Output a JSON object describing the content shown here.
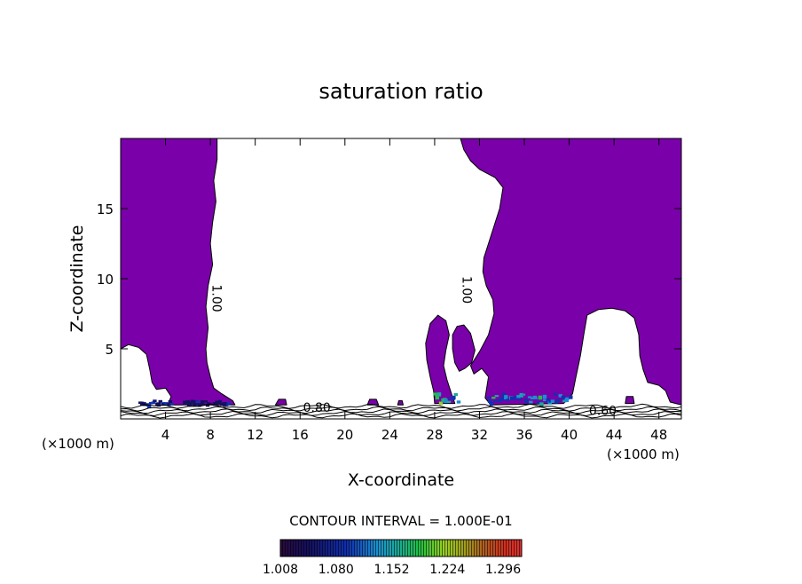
{
  "chart_data": {
    "type": "heatmap",
    "title": "saturation ratio",
    "xlabel": "X-coordinate",
    "ylabel": "Z-coordinate",
    "x_unit_label": "(×1000 m)",
    "z_unit_label": "(×1000 m)",
    "xlim": [
      0,
      50
    ],
    "ylim": [
      0,
      20
    ],
    "x_ticks": [
      4,
      8,
      12,
      16,
      20,
      24,
      28,
      32,
      36,
      40,
      44,
      48
    ],
    "y_ticks": [
      5,
      10,
      15
    ],
    "contour_labels": [
      {
        "text": "1.00",
        "x": 8.2,
        "z": 8.6
      },
      {
        "text": "1.00",
        "x": 30.5,
        "z": 9.2
      },
      {
        "text": "0.80",
        "x": 17.5,
        "z": 0.5
      },
      {
        "text": "0.60",
        "x": 43.0,
        "z": 0.3
      }
    ],
    "contour_interval_text": "CONTOUR INTERVAL = 1.000E-01",
    "colorbar": {
      "ticks": [
        "1.008",
        "1.080",
        "1.152",
        "1.224",
        "1.296"
      ],
      "min": 1.008,
      "max": 1.32
    },
    "colors": {
      "supersaturated_fill": "#7a00aa",
      "contour_line": "#000000"
    },
    "regions": [
      {
        "name": "left-column",
        "outline": [
          [
            0,
            20
          ],
          [
            8.6,
            20
          ],
          [
            8.6,
            18.5
          ],
          [
            8.3,
            17
          ],
          [
            8.5,
            15.5
          ],
          [
            8.2,
            14
          ],
          [
            8.0,
            12.5
          ],
          [
            8.2,
            11
          ],
          [
            7.8,
            9.5
          ],
          [
            7.6,
            8
          ],
          [
            7.8,
            6.5
          ],
          [
            7.6,
            5
          ],
          [
            7.7,
            4
          ],
          [
            8.0,
            3
          ],
          [
            8.3,
            2.2
          ],
          [
            9.0,
            1.8
          ],
          [
            10.0,
            1.3
          ],
          [
            10.2,
            1.0
          ],
          [
            4.2,
            1.0
          ],
          [
            4.5,
            1.6
          ],
          [
            4.0,
            2.2
          ],
          [
            3.2,
            2.1
          ],
          [
            2.8,
            2.6
          ],
          [
            2.6,
            3.5
          ],
          [
            2.3,
            4.6
          ],
          [
            1.6,
            5.1
          ],
          [
            0.7,
            5.3
          ],
          [
            0,
            5.0
          ]
        ]
      },
      {
        "name": "right-column",
        "outline": [
          [
            30.3,
            20
          ],
          [
            50,
            20
          ],
          [
            50,
            1.0
          ],
          [
            49.0,
            1.2
          ],
          [
            48.6,
            2.0
          ],
          [
            48.0,
            2.4
          ],
          [
            47.0,
            2.6
          ],
          [
            46.6,
            3.5
          ],
          [
            46.3,
            4.5
          ],
          [
            46.2,
            6.0
          ],
          [
            45.8,
            7.2
          ],
          [
            45.0,
            7.7
          ],
          [
            43.8,
            7.9
          ],
          [
            42.6,
            7.8
          ],
          [
            41.6,
            7.4
          ],
          [
            41.3,
            6.0
          ],
          [
            41.0,
            4.5
          ],
          [
            40.6,
            3.0
          ],
          [
            40.3,
            1.8
          ],
          [
            39.5,
            1.1
          ],
          [
            33.0,
            1.0
          ],
          [
            32.5,
            1.5
          ],
          [
            32.8,
            3.0
          ],
          [
            32.2,
            3.6
          ],
          [
            31.5,
            3.2
          ],
          [
            31.2,
            3.8
          ],
          [
            32.0,
            4.8
          ],
          [
            32.8,
            6.0
          ],
          [
            33.3,
            7.5
          ],
          [
            33.2,
            8.5
          ],
          [
            32.6,
            9.5
          ],
          [
            32.3,
            10.5
          ],
          [
            32.4,
            11.5
          ],
          [
            33.0,
            13.0
          ],
          [
            33.8,
            15.0
          ],
          [
            34.1,
            16.5
          ],
          [
            33.4,
            17.2
          ],
          [
            32.0,
            17.8
          ],
          [
            31.2,
            18.4
          ],
          [
            30.6,
            19.2
          ]
        ]
      },
      {
        "name": "arch-left-lobe",
        "outline": [
          [
            27.2,
            5.4
          ],
          [
            27.6,
            6.8
          ],
          [
            28.3,
            7.4
          ],
          [
            29.0,
            7.0
          ],
          [
            29.3,
            6.0
          ],
          [
            29.0,
            4.9
          ],
          [
            28.8,
            3.8
          ],
          [
            29.1,
            2.8
          ],
          [
            29.5,
            1.8
          ],
          [
            29.8,
            1.1
          ],
          [
            28.0,
            1.1
          ],
          [
            27.9,
            2.0
          ],
          [
            27.6,
            3.0
          ],
          [
            27.3,
            4.2
          ]
        ]
      },
      {
        "name": "arch-right-lobe",
        "outline": [
          [
            29.6,
            6.0
          ],
          [
            30.0,
            6.6
          ],
          [
            30.6,
            6.7
          ],
          [
            31.2,
            6.1
          ],
          [
            31.6,
            4.9
          ],
          [
            31.3,
            4.0
          ],
          [
            30.7,
            3.6
          ],
          [
            30.2,
            3.4
          ],
          [
            29.8,
            4.0
          ],
          [
            29.6,
            5.0
          ]
        ]
      },
      {
        "name": "patch-1",
        "outline": [
          [
            13.8,
            1.0
          ],
          [
            14.8,
            1.0
          ],
          [
            14.7,
            1.4
          ],
          [
            14.1,
            1.4
          ]
        ]
      },
      {
        "name": "patch-2",
        "outline": [
          [
            22.0,
            1.0
          ],
          [
            23.0,
            1.0
          ],
          [
            22.8,
            1.4
          ],
          [
            22.2,
            1.4
          ]
        ]
      },
      {
        "name": "patch-3",
        "outline": [
          [
            24.7,
            1.0
          ],
          [
            25.2,
            1.0
          ],
          [
            25.1,
            1.3
          ],
          [
            24.8,
            1.3
          ]
        ]
      },
      {
        "name": "patch-4",
        "outline": [
          [
            45.0,
            1.1
          ],
          [
            45.8,
            1.1
          ],
          [
            45.7,
            1.6
          ],
          [
            45.1,
            1.6
          ]
        ]
      }
    ],
    "hotspots": [
      {
        "x0": 1.5,
        "x1": 4.5,
        "z0": 1.0,
        "z1": 1.5,
        "level": 0.05
      },
      {
        "x0": 5.5,
        "x1": 9.5,
        "z0": 1.0,
        "z1": 1.5,
        "level": 0.04
      },
      {
        "x0": 27.8,
        "x1": 30.0,
        "z0": 1.0,
        "z1": 2.2,
        "level": 0.18
      },
      {
        "x0": 32.5,
        "x1": 40.0,
        "z0": 1.0,
        "z1": 2.2,
        "level": 0.16
      }
    ]
  }
}
